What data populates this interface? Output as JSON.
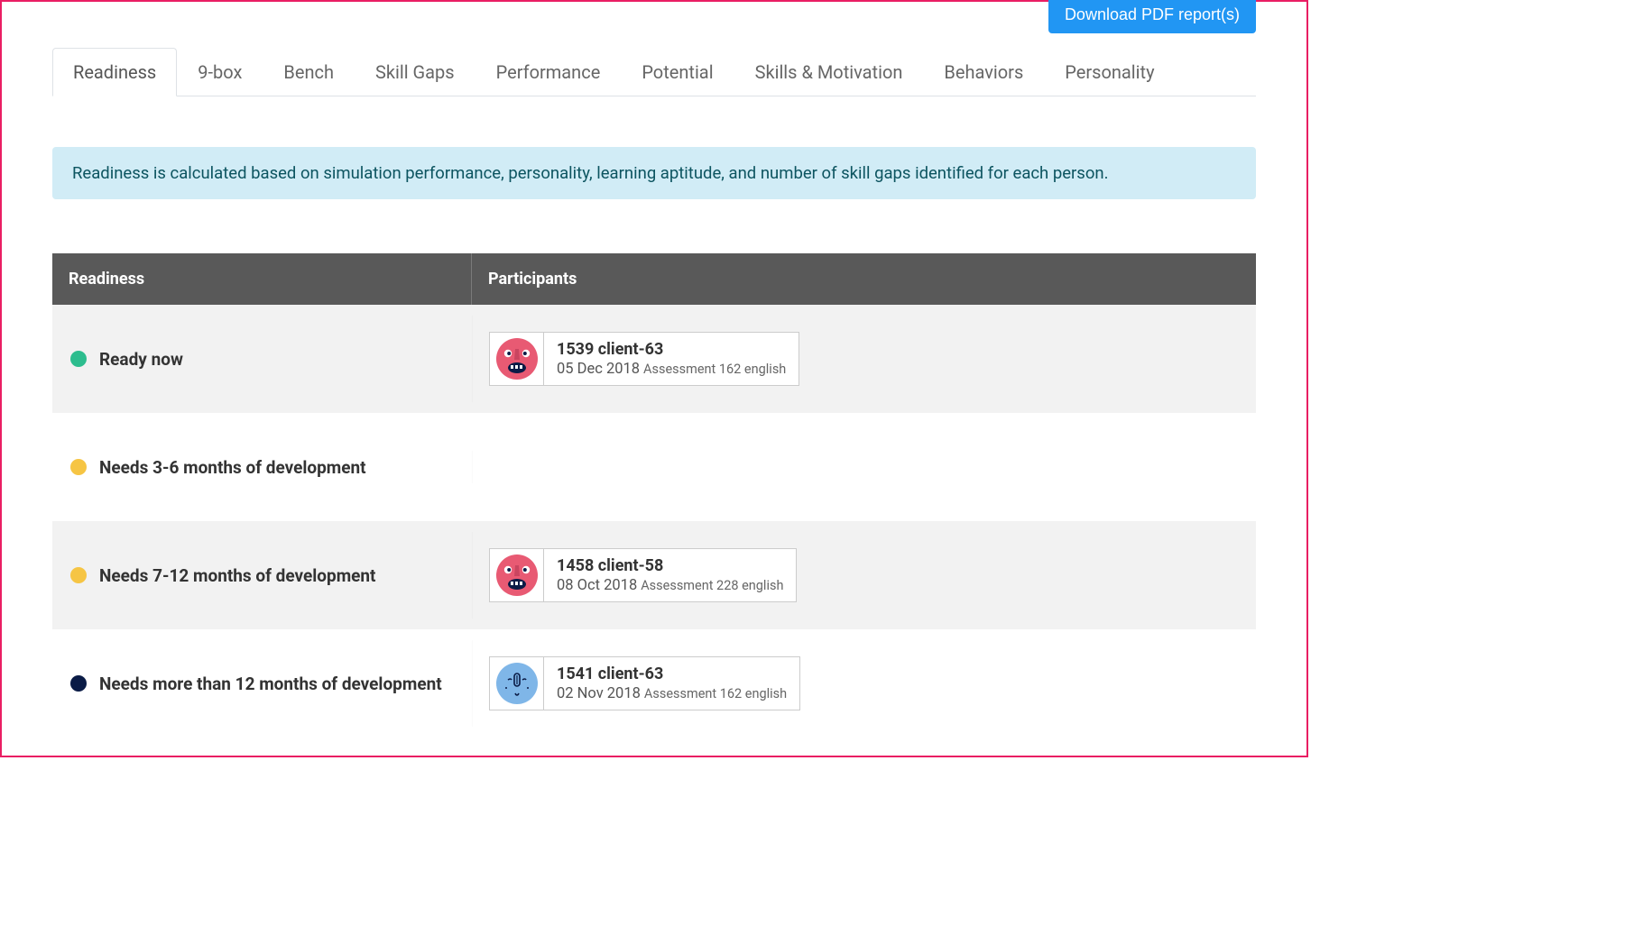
{
  "download_button": "Download PDF report(s)",
  "tabs": [
    {
      "label": "Readiness",
      "active": true
    },
    {
      "label": "9-box",
      "active": false
    },
    {
      "label": "Bench",
      "active": false
    },
    {
      "label": "Skill Gaps",
      "active": false
    },
    {
      "label": "Performance",
      "active": false
    },
    {
      "label": "Potential",
      "active": false
    },
    {
      "label": "Skills & Motivation",
      "active": false
    },
    {
      "label": "Behaviors",
      "active": false
    },
    {
      "label": "Personality",
      "active": false
    }
  ],
  "info_banner": "Readiness is calculated based on simulation performance, personality, learning aptitude, and number of skill gaps identified for each person.",
  "table": {
    "headers": {
      "readiness": "Readiness",
      "participants": "Participants"
    },
    "dot_colors": {
      "green": "#2dbd8e",
      "amber": "#f6c544",
      "navy": "#0a1b46"
    },
    "avatar_colors": {
      "pink": "#e85a73",
      "blue": "#7fb6e8"
    },
    "rows": [
      {
        "alt": true,
        "dot": "green",
        "label": "Ready now",
        "participants": [
          {
            "avatar": "pink",
            "name": "1539 client-63",
            "date": "05 Dec 2018",
            "assessment": "Assessment 162 english"
          }
        ]
      },
      {
        "alt": false,
        "dot": "amber",
        "label": "Needs 3-6 months of development",
        "participants": []
      },
      {
        "alt": true,
        "dot": "amber",
        "label": "Needs 7-12 months of development",
        "participants": [
          {
            "avatar": "pink",
            "name": "1458 client-58",
            "date": "08 Oct 2018",
            "assessment": "Assessment 228 english"
          }
        ]
      },
      {
        "alt": false,
        "dot": "navy",
        "label": "Needs more than 12 months of development",
        "participants": [
          {
            "avatar": "blue",
            "name": "1541 client-63",
            "date": "02 Nov 2018",
            "assessment": "Assessment 162 english"
          }
        ]
      }
    ]
  }
}
